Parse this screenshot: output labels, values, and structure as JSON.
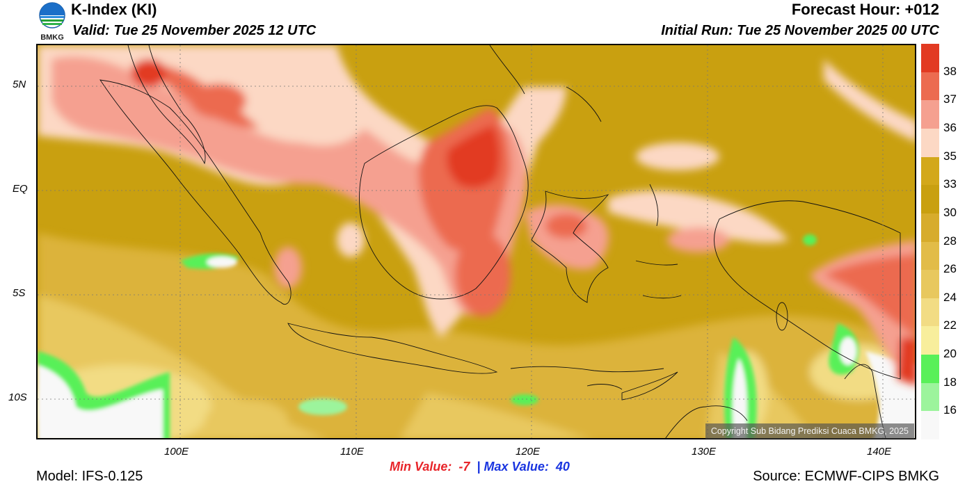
{
  "header": {
    "title": "K-Index (KI)",
    "valid": "Valid: Tue 25 November 2025 12 UTC",
    "forecast_hour": "Forecast Hour: +012",
    "initial_run": "Initial Run: Tue 25 November 2025 00 UTC",
    "logo_text": "BMKG"
  },
  "map": {
    "lat_labels": [
      "5N",
      "EQ",
      "5S",
      "10S"
    ],
    "lon_labels": [
      "100E",
      "110E",
      "120E",
      "130E",
      "140E"
    ],
    "copyright": "Copyright Sub Bidang Prediksi Cuaca BMKG, 2025"
  },
  "legend": {
    "levels": [
      "38",
      "37",
      "36",
      "35",
      "33",
      "30",
      "28",
      "26",
      "24",
      "22",
      "20",
      "18",
      "16"
    ],
    "colors": [
      "#e23a22",
      "#ec6b50",
      "#f5a090",
      "#fcd8c4",
      "#d3a81a",
      "#c9a010",
      "#d7ac2c",
      "#e2bc48",
      "#e8c85e",
      "#f2dc84",
      "#f8ee9c",
      "#59f059",
      "#9cf49c",
      "#f8f8f8"
    ]
  },
  "footer": {
    "min_label": "Min Value:",
    "min_value": "-7",
    "separator": "|",
    "max_label": "Max Value:",
    "max_value": "40",
    "model": "Model: IFS-0.125",
    "source": "Source: ECMWF-CIPS BMKG"
  }
}
